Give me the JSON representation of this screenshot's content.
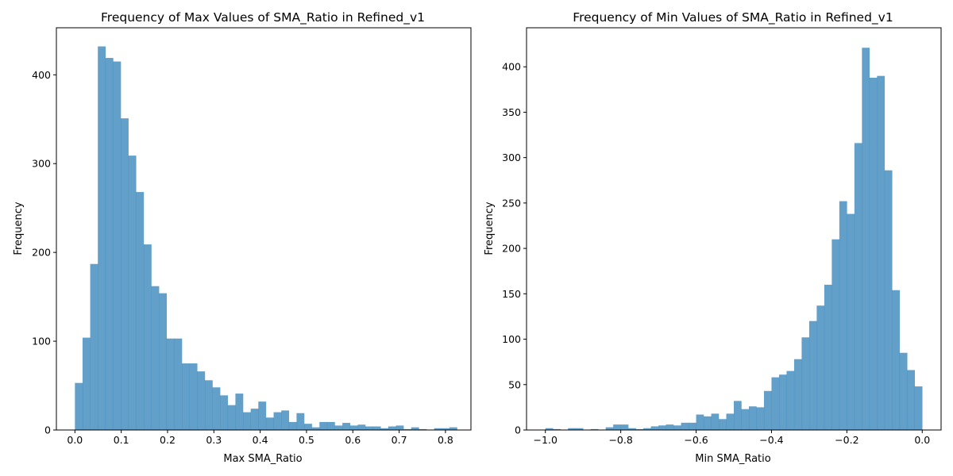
{
  "bar_color": "#1f77b4",
  "bar_opacity": 0.7,
  "chart_data": [
    {
      "type": "bar",
      "histogram": true,
      "title": "Frequency of Max Values of SMA_Ratio in Refined_v1",
      "xlabel": "Max SMA_Ratio",
      "ylabel": "Frequency",
      "xlim": [
        -0.04,
        0.855
      ],
      "ylim": [
        0,
        453
      ],
      "xticks": [
        0.0,
        0.1,
        0.2,
        0.3,
        0.4,
        0.5,
        0.6,
        0.7,
        0.8
      ],
      "xtick_labels": [
        "0.0",
        "0.1",
        "0.2",
        "0.3",
        "0.4",
        "0.5",
        "0.6",
        "0.7",
        "0.8"
      ],
      "yticks": [
        0,
        100,
        200,
        300,
        400
      ],
      "ytick_labels": [
        "0",
        "100",
        "200",
        "300",
        "400"
      ],
      "grid": false,
      "bin_start": 0.0,
      "bin_width": 0.0165,
      "values": [
        53,
        104,
        187,
        432,
        419,
        415,
        351,
        309,
        268,
        209,
        162,
        154,
        103,
        103,
        75,
        75,
        66,
        56,
        48,
        39,
        28,
        41,
        20,
        24,
        32,
        14,
        20,
        22,
        9,
        19,
        7,
        3,
        9,
        9,
        5,
        8,
        5,
        6,
        4,
        4,
        2,
        4,
        5,
        1,
        3,
        1,
        0,
        2,
        2,
        3
      ]
    },
    {
      "type": "bar",
      "histogram": true,
      "title": "Frequency of Min Values of SMA_Ratio in Refined_v1",
      "xlabel": "Min SMA_Ratio",
      "ylabel": "Frequency",
      "xlim": [
        -1.05,
        0.05
      ],
      "ylim": [
        0,
        443
      ],
      "xticks": [
        -1.0,
        -0.8,
        -0.6,
        -0.4,
        -0.2,
        0.0
      ],
      "xtick_labels": [
        "−1.0",
        "−0.8",
        "−0.6",
        "−0.4",
        "−0.2",
        "0.0"
      ],
      "yticks": [
        0,
        50,
        100,
        150,
        200,
        250,
        300,
        350,
        400
      ],
      "ytick_labels": [
        "0",
        "50",
        "100",
        "150",
        "200",
        "250",
        "300",
        "350",
        "400"
      ],
      "grid": false,
      "bin_start": -1.0,
      "bin_width": 0.02,
      "values": [
        2,
        1,
        0,
        2,
        2,
        0,
        1,
        0,
        3,
        6,
        6,
        2,
        1,
        2,
        4,
        5,
        6,
        5,
        8,
        8,
        17,
        15,
        18,
        12,
        18,
        32,
        23,
        26,
        25,
        43,
        58,
        61,
        65,
        78,
        102,
        120,
        137,
        160,
        210,
        252,
        238,
        316,
        421,
        388,
        390,
        286,
        154,
        85,
        66,
        48
      ]
    }
  ]
}
